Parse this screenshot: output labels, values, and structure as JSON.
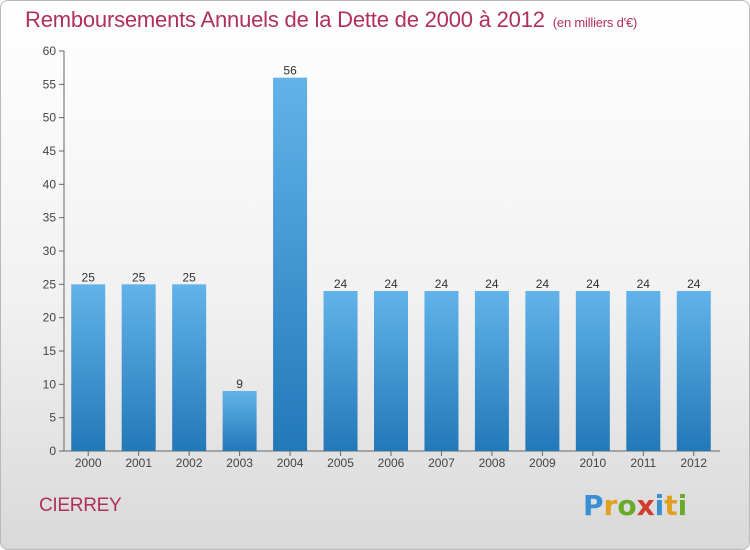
{
  "header": {
    "title": "Remboursements Annuels de la Dette de 2000 à 2012",
    "unit": "(en milliers d'€)"
  },
  "footer": {
    "commune": "CIERREY",
    "brand": "Proxiti",
    "brand_letters": [
      {
        "ch": "P",
        "color": "#3a8ed6"
      },
      {
        "ch": "r",
        "color": "#e0a020"
      },
      {
        "ch": "o",
        "color": "#6aaa2a"
      },
      {
        "ch": "x",
        "color": "#d23c2c"
      },
      {
        "ch": "i",
        "color": "#3a8ed6"
      },
      {
        "ch": "t",
        "color": "#e0a020"
      },
      {
        "ch": "i",
        "color": "#6aaa2a"
      }
    ]
  },
  "colors": {
    "title": "#b0305a",
    "bar_top": "#62b3ea",
    "bar_bottom": "#2378b8"
  },
  "chart_data": {
    "type": "bar",
    "title": "Remboursements Annuels de la Dette de 2000 à 2012",
    "categories": [
      "2000",
      "2001",
      "2002",
      "2003",
      "2004",
      "2005",
      "2006",
      "2007",
      "2008",
      "2009",
      "2010",
      "2011",
      "2012"
    ],
    "values": [
      25,
      25,
      25,
      9,
      56,
      24,
      24,
      24,
      24,
      24,
      24,
      24,
      24
    ],
    "ylim": [
      0,
      60
    ],
    "yticks": [
      0,
      5,
      10,
      15,
      20,
      25,
      30,
      35,
      40,
      45,
      50,
      55,
      60
    ],
    "grid": false,
    "legend": "none"
  }
}
